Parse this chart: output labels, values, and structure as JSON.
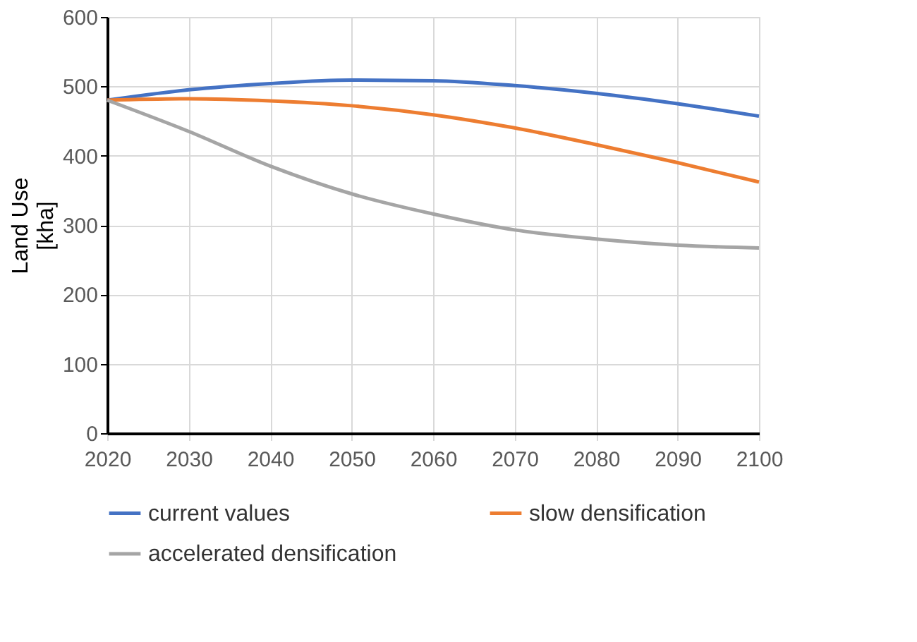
{
  "chart_data": {
    "type": "line",
    "ylabel": "Land Use [kha]",
    "x": [
      2020,
      2030,
      2040,
      2050,
      2060,
      2070,
      2080,
      2090,
      2100
    ],
    "series": [
      {
        "name": "current values",
        "color": "#4472c4",
        "values": [
          480,
          495,
          504,
          509,
          508,
          501,
          490,
          475,
          457
        ]
      },
      {
        "name": "slow densification",
        "color": "#ed7d31",
        "values": [
          480,
          482,
          479,
          472,
          459,
          440,
          416,
          390,
          362
        ]
      },
      {
        "name": "accelerated densification",
        "color": "#a5a5a5",
        "values": [
          480,
          435,
          385,
          345,
          316,
          293,
          280,
          271,
          267
        ]
      }
    ],
    "xlim": [
      2020,
      2100
    ],
    "xticks": [
      2020,
      2030,
      2040,
      2050,
      2060,
      2070,
      2080,
      2090,
      2100
    ],
    "ylim": [
      0,
      600
    ],
    "yticks": [
      0,
      100,
      200,
      300,
      400,
      500,
      600
    ],
    "grid": true,
    "legend": "bottom",
    "marker": "none",
    "line_style": "solid"
  }
}
